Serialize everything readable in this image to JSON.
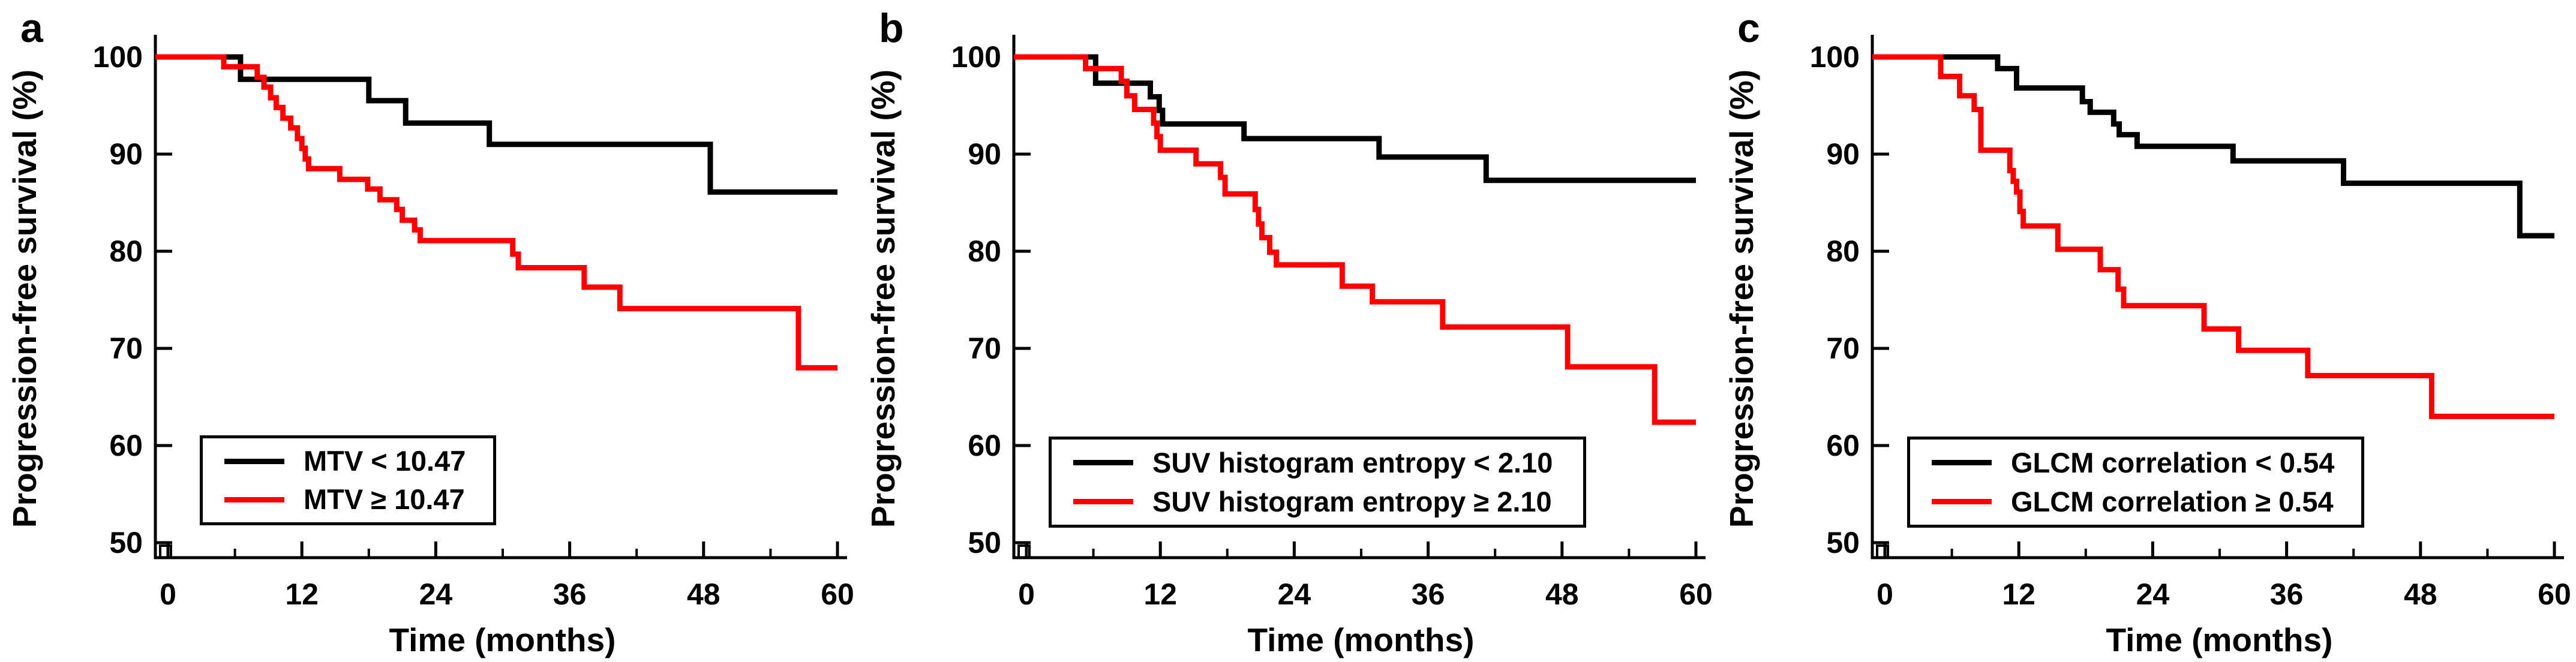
{
  "figure": {
    "background": "#ffffff",
    "accent_black": "#000000",
    "accent_red": "#ff0000",
    "panels": [
      {
        "letter": "a",
        "legend": [
          {
            "label": "MTV < 10.47",
            "color": "#000000"
          },
          {
            "label": "MTV ≥ 10.47",
            "color": "#ff0000"
          }
        ]
      },
      {
        "letter": "b",
        "legend": [
          {
            "label": "SUV histogram entropy < 2.10",
            "color": "#000000"
          },
          {
            "label": "SUV histogram entropy ≥ 2.10",
            "color": "#ff0000"
          }
        ]
      },
      {
        "letter": "c",
        "legend": [
          {
            "label": "GLCM correlation < 0.54",
            "color": "#000000"
          },
          {
            "label": "GLCM correlation ≥ 0.54",
            "color": "#ff0000"
          }
        ]
      }
    ]
  },
  "chart_data": [
    {
      "type": "line",
      "subtype": "kaplan-meier-step",
      "title": "",
      "xlabel": "Time (months)",
      "ylabel": "Progression-free survival (%)",
      "xlim": [
        0,
        60
      ],
      "ylim": [
        50,
        100
      ],
      "xticks": [
        0,
        12,
        24,
        36,
        48,
        60
      ],
      "xticks_minor": [
        6,
        18,
        30,
        42,
        54
      ],
      "yticks": [
        50,
        60,
        70,
        80,
        90,
        100
      ],
      "grid": false,
      "legend_position": "lower-left",
      "axis_break_at_origin": true,
      "series": [
        {
          "name": "MTV < 10.47",
          "color": "#000000",
          "points": [
            [
              0,
              100
            ],
            [
              6.5,
              97.7
            ],
            [
              18,
              95.5
            ],
            [
              21.3,
              93.2
            ],
            [
              28.8,
              91.0
            ],
            [
              48.6,
              86.1
            ],
            [
              60,
              86.1
            ]
          ]
        },
        {
          "name": "MTV ≥ 10.47",
          "color": "#ff0000",
          "points": [
            [
              0,
              100
            ],
            [
              5,
              99.0
            ],
            [
              8,
              97.9
            ],
            [
              8.6,
              96.9
            ],
            [
              9.2,
              95.8
            ],
            [
              9.7,
              94.8
            ],
            [
              10.3,
              93.7
            ],
            [
              11,
              92.7
            ],
            [
              11.6,
              91.6
            ],
            [
              12,
              90.6
            ],
            [
              12.3,
              89.5
            ],
            [
              12.6,
              88.5
            ],
            [
              15.4,
              87.4
            ],
            [
              17.9,
              86.4
            ],
            [
              19,
              85.3
            ],
            [
              20.5,
              84.3
            ],
            [
              21,
              83.2
            ],
            [
              22.1,
              82.2
            ],
            [
              22.6,
              81.1
            ],
            [
              30.9,
              79.7
            ],
            [
              31.4,
              78.3
            ],
            [
              37.3,
              76.3
            ],
            [
              40.5,
              74.1
            ],
            [
              56.5,
              68.0
            ],
            [
              60,
              68.0
            ]
          ]
        }
      ]
    },
    {
      "type": "line",
      "subtype": "kaplan-meier-step",
      "title": "",
      "xlabel": "Time (months)",
      "ylabel": "Progression-free survival (%)",
      "xlim": [
        0,
        60
      ],
      "ylim": [
        50,
        100
      ],
      "xticks": [
        0,
        12,
        24,
        36,
        48,
        60
      ],
      "xticks_minor": [
        6,
        18,
        30,
        42,
        54
      ],
      "yticks": [
        50,
        60,
        70,
        80,
        90,
        100
      ],
      "grid": false,
      "legend_position": "lower-left",
      "axis_break_at_origin": true,
      "series": [
        {
          "name": "SUV histogram entropy < 2.10",
          "color": "#000000",
          "points": [
            [
              0,
              100
            ],
            [
              6.2,
              97.3
            ],
            [
              11.1,
              95.9
            ],
            [
              11.9,
              94.5
            ],
            [
              12.2,
              93.1
            ],
            [
              19.5,
              91.6
            ],
            [
              31.6,
              89.7
            ],
            [
              41.2,
              87.3
            ],
            [
              60,
              87.3
            ]
          ]
        },
        {
          "name": "SUV histogram entropy ≥ 2.10",
          "color": "#ff0000",
          "points": [
            [
              0,
              100
            ],
            [
              5.3,
              98.8
            ],
            [
              8.5,
              97.5
            ],
            [
              9,
              96.0
            ],
            [
              9.7,
              94.6
            ],
            [
              11.4,
              93.2
            ],
            [
              11.7,
              91.8
            ],
            [
              12,
              90.4
            ],
            [
              15.2,
              89.0
            ],
            [
              17.4,
              87.6
            ],
            [
              17.8,
              85.9
            ],
            [
              20.5,
              84.3
            ],
            [
              20.8,
              82.8
            ],
            [
              21.1,
              81.4
            ],
            [
              21.8,
              79.9
            ],
            [
              22.4,
              78.6
            ],
            [
              28.3,
              76.4
            ],
            [
              31,
              74.8
            ],
            [
              37.3,
              72.2
            ],
            [
              48.5,
              68.1
            ],
            [
              56.3,
              62.4
            ],
            [
              60,
              62.4
            ]
          ]
        }
      ]
    },
    {
      "type": "line",
      "subtype": "kaplan-meier-step",
      "title": "",
      "xlabel": "Time (months)",
      "ylabel": "Progression-free survival (%)",
      "xlim": [
        0,
        60
      ],
      "ylim": [
        50,
        100
      ],
      "xticks": [
        0,
        12,
        24,
        36,
        48,
        60
      ],
      "xticks_minor": [
        6,
        18,
        30,
        42,
        54
      ],
      "yticks": [
        50,
        60,
        70,
        80,
        90,
        100
      ],
      "grid": false,
      "legend_position": "lower-left",
      "axis_break_at_origin": true,
      "series": [
        {
          "name": "GLCM correlation < 0.54",
          "color": "#000000",
          "points": [
            [
              0,
              100
            ],
            [
              10.1,
              98.8
            ],
            [
              11.8,
              96.8
            ],
            [
              17.7,
              95.4
            ],
            [
              18.4,
              94.3
            ],
            [
              20.5,
              93.1
            ],
            [
              21,
              92.0
            ],
            [
              22.6,
              90.8
            ],
            [
              31.2,
              89.3
            ],
            [
              41.1,
              87.0
            ],
            [
              56.9,
              81.6
            ],
            [
              60,
              81.6
            ]
          ]
        },
        {
          "name": "GLCM correlation ≥ 0.54",
          "color": "#ff0000",
          "points": [
            [
              0,
              100
            ],
            [
              5,
              98.0
            ],
            [
              6.7,
              96.0
            ],
            [
              8,
              94.6
            ],
            [
              8.6,
              90.4
            ],
            [
              11.2,
              88.3
            ],
            [
              11.5,
              87.2
            ],
            [
              11.8,
              86.1
            ],
            [
              12.1,
              84.1
            ],
            [
              12.4,
              82.6
            ],
            [
              15.5,
              80.2
            ],
            [
              19.3,
              78.1
            ],
            [
              20.9,
              76.1
            ],
            [
              21.4,
              74.4
            ],
            [
              28.6,
              72.0
            ],
            [
              31.7,
              69.8
            ],
            [
              37.9,
              67.2
            ],
            [
              49,
              63.0
            ],
            [
              60,
              63.0
            ]
          ]
        }
      ]
    }
  ]
}
